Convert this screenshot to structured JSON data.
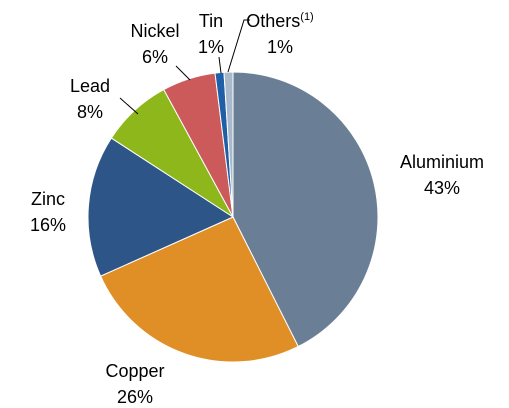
{
  "chart_data": {
    "type": "pie",
    "categories": [
      "Aluminium",
      "Copper",
      "Zinc",
      "Lead",
      "Nickel",
      "Tin",
      "Others"
    ],
    "footnote_marks": [
      null,
      null,
      null,
      null,
      null,
      null,
      "(1)"
    ],
    "values": [
      43,
      26,
      16,
      8,
      6,
      1,
      1
    ],
    "value_labels": [
      "43%",
      "26%",
      "16%",
      "8%",
      "6%",
      "1%",
      "1%"
    ],
    "colors": [
      "#6a7f96",
      "#e08f27",
      "#2d5587",
      "#8db71a",
      "#cd5a5a",
      "#1f5fa8",
      "#a9b9cd"
    ]
  }
}
